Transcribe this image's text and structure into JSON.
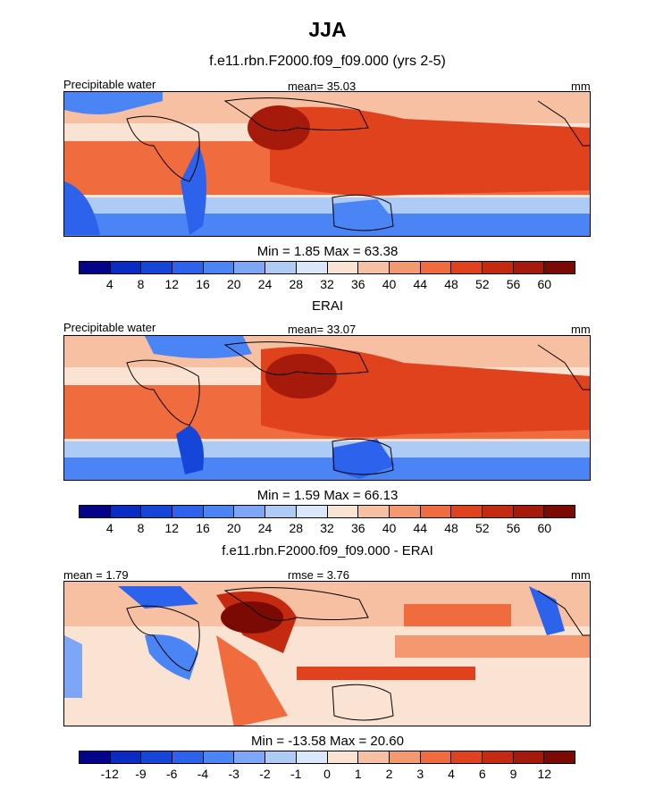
{
  "title": "JJA",
  "subtitle": "f.e11.rbn.F2000.f09_f09.000 (yrs 2-5)",
  "panels": [
    {
      "left_label": "Precipitable water",
      "center_label": "mean=  35.03",
      "right_label": "mm",
      "stats": "Min =   1.85 Max =  63.38",
      "ticks": [
        "4",
        "8",
        "12",
        "16",
        "20",
        "24",
        "28",
        "32",
        "36",
        "40",
        "44",
        "48",
        "52",
        "56",
        "60"
      ]
    },
    {
      "heading": "ERAI",
      "left_label": "Precipitable water",
      "center_label": "mean=  33.07",
      "right_label": "mm",
      "stats": "Min =   1.59 Max =  66.13",
      "ticks": [
        "4",
        "8",
        "12",
        "16",
        "20",
        "24",
        "28",
        "32",
        "36",
        "40",
        "44",
        "48",
        "52",
        "56",
        "60"
      ]
    },
    {
      "heading": "f.e11.rbn.F2000.f09_f09.000 - ERAI",
      "left_label": "mean =   1.79",
      "center_label": "rmse =   3.76",
      "right_label": "mm",
      "stats": "Min = -13.58 Max =  20.60",
      "ticks": [
        "-12",
        "-9",
        "-6",
        "-4",
        "-3",
        "-2",
        "-1",
        "0",
        "1",
        "2",
        "3",
        "4",
        "6",
        "9",
        "12"
      ]
    }
  ],
  "colorbar_colors": [
    "#04048a",
    "#0b2cc4",
    "#1546d9",
    "#2d63ec",
    "#4b84f4",
    "#7da7f6",
    "#aecbf6",
    "#dae7fb",
    "#fbe3d4",
    "#f7c0a3",
    "#f4996f",
    "#f06b3e",
    "#e0421e",
    "#c42a10",
    "#a51a0a",
    "#7b0a05"
  ]
}
